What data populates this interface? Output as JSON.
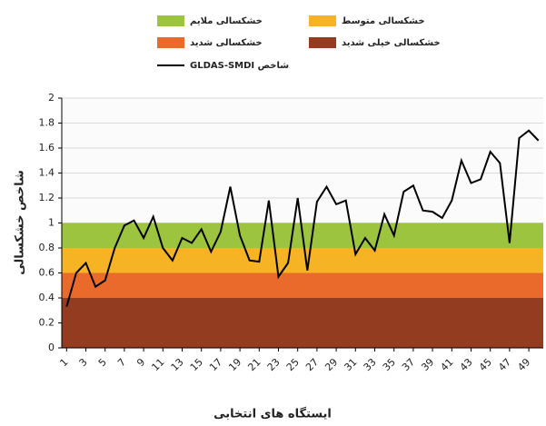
{
  "chart_data": {
    "type": "line",
    "y_title": "شاخص خشکسالی",
    "x_title": "ایستگاه های انتخابی",
    "x": [
      1,
      2,
      3,
      4,
      5,
      6,
      7,
      8,
      9,
      10,
      11,
      12,
      13,
      14,
      15,
      16,
      17,
      18,
      19,
      20,
      21,
      22,
      23,
      24,
      25,
      26,
      27,
      28,
      29,
      30,
      31,
      32,
      33,
      34,
      35,
      36,
      37,
      38,
      39,
      40,
      41,
      42,
      43,
      44,
      45,
      46,
      47,
      48,
      49,
      50
    ],
    "series": [
      {
        "name": "شاخص GLDAS-SMDI",
        "color": "#000000",
        "values": [
          0.33,
          0.6,
          0.68,
          0.49,
          0.54,
          0.8,
          0.98,
          1.02,
          0.88,
          1.05,
          0.8,
          0.7,
          0.88,
          0.84,
          0.95,
          0.77,
          0.93,
          1.29,
          0.9,
          0.7,
          0.69,
          1.18,
          0.57,
          0.68,
          1.2,
          0.62,
          1.17,
          1.29,
          1.15,
          1.18,
          0.75,
          0.88,
          0.78,
          1.07,
          0.9,
          1.25,
          1.3,
          1.1,
          1.09,
          1.04,
          1.18,
          1.5,
          1.32,
          1.35,
          1.57,
          1.48,
          0.84,
          1.68,
          1.74,
          1.66
        ]
      }
    ],
    "bands": [
      {
        "name": "خشکسالی ملایم",
        "color": "#9cc43e",
        "range": [
          0.8,
          1
        ]
      },
      {
        "name": "خشکسالی متوسط",
        "color": "#f6b324",
        "range": [
          0.6,
          0.8
        ]
      },
      {
        "name": "خشکسالی شدید",
        "color": "#ea6a2c",
        "range": [
          0.4,
          0.6
        ]
      },
      {
        "name": "خشکسالی خیلی شدید",
        "color": "#933c20",
        "range": [
          0,
          0.4
        ]
      }
    ],
    "xlim": [
      0.5,
      50.5
    ],
    "xticks": [
      1,
      3,
      5,
      7,
      9,
      11,
      13,
      15,
      17,
      19,
      21,
      23,
      25,
      27,
      29,
      31,
      33,
      35,
      37,
      39,
      41,
      43,
      45,
      47,
      49
    ],
    "ylim": [
      0,
      2
    ],
    "yticks": [
      0,
      0.2,
      0.4,
      0.6,
      0.8,
      1,
      1.2,
      1.4,
      1.6,
      1.8,
      2
    ],
    "grid": true
  }
}
